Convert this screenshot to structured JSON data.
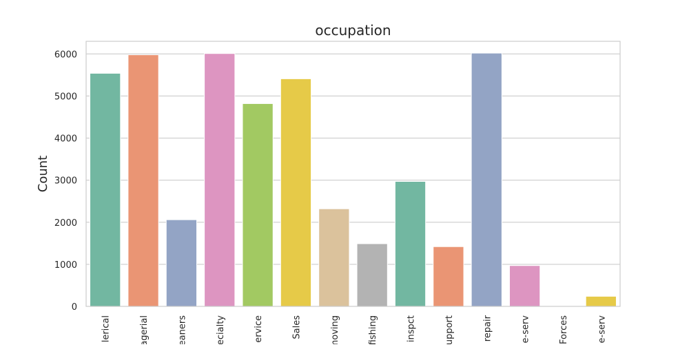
{
  "chart_data": {
    "type": "bar",
    "title": "occupation",
    "xlabel": "",
    "ylabel": "Count",
    "categories": [
      "lerical",
      "agerial",
      "eaners",
      "ecialty",
      "ervice",
      "Sales",
      "moving",
      "fishing",
      "inspct",
      "upport",
      "repair",
      "e-serv",
      "Forces",
      "e-serv"
    ],
    "values": [
      5540,
      5980,
      2060,
      6010,
      4820,
      5410,
      2320,
      1490,
      2970,
      1420,
      6020,
      970,
      10,
      240
    ],
    "colors": [
      "#72b7a1",
      "#ea9574",
      "#93a4c5",
      "#dd95c1",
      "#a2c962",
      "#e6ca48",
      "#dbc29c",
      "#b3b3b3",
      "#72b7a1",
      "#ea9574",
      "#93a4c5",
      "#dd95c1",
      "#a2c962",
      "#e6ca48"
    ],
    "ylim": [
      0,
      6300
    ],
    "yticks": [
      0,
      1000,
      2000,
      3000,
      4000,
      5000,
      6000
    ],
    "grid": "horizontal",
    "legend": "none"
  }
}
